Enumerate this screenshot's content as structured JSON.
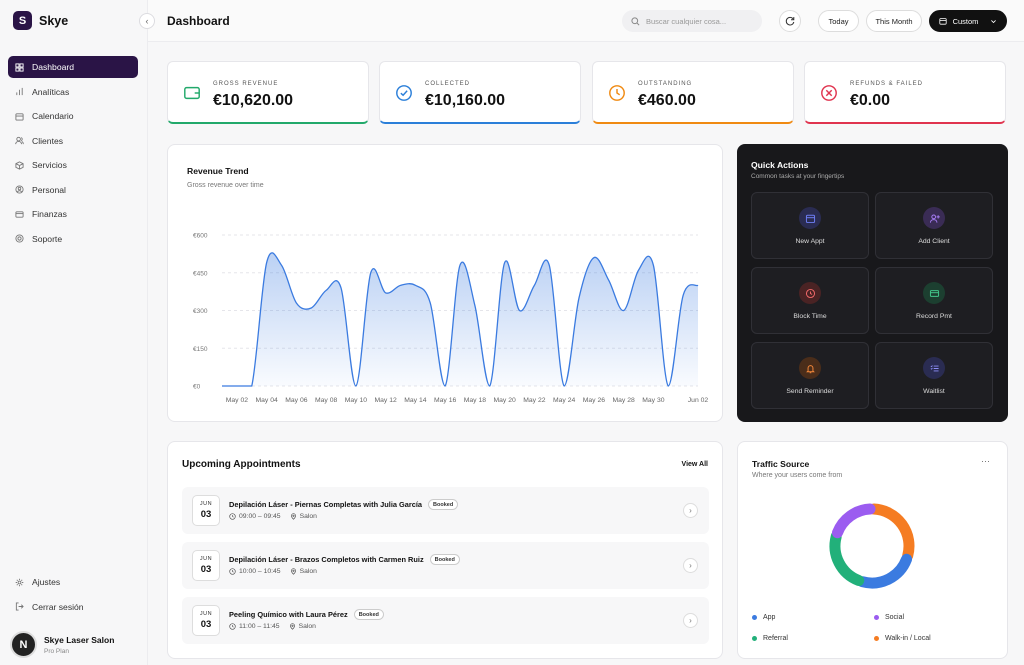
{
  "brand": {
    "initial": "S",
    "name": "Skye"
  },
  "nav": [
    {
      "label": "Dashboard",
      "icon": "grid-icon",
      "active": true
    },
    {
      "label": "Analíticas",
      "icon": "bar-chart-icon"
    },
    {
      "label": "Calendario",
      "icon": "calendar-icon"
    },
    {
      "label": "Clientes",
      "icon": "users-icon"
    },
    {
      "label": "Servicios",
      "icon": "box-icon"
    },
    {
      "label": "Personal",
      "icon": "user-circle-icon"
    },
    {
      "label": "Finanzas",
      "icon": "card-icon"
    },
    {
      "label": "Soporte",
      "icon": "lifebuoy-icon"
    }
  ],
  "bottom_nav": [
    {
      "label": "Ajustes",
      "icon": "gear-icon"
    },
    {
      "label": "Cerrar sesión",
      "icon": "logout-icon"
    }
  ],
  "user": {
    "initial": "N",
    "name": "Skye Laser Salon",
    "plan": "Pro Plan"
  },
  "header": {
    "title": "Dashboard",
    "search_placeholder": "Buscar cualquier cosa...",
    "today": "Today",
    "this_month": "This Month",
    "custom": "Custom"
  },
  "stats": [
    {
      "label": "GROSS REVENUE",
      "value": "€10,620.00",
      "color": "#22a96b",
      "icon": "wallet-icon"
    },
    {
      "label": "COLLECTED",
      "value": "€10,160.00",
      "color": "#2b7fd9",
      "icon": "check-circle-icon"
    },
    {
      "label": "OUTSTANDING",
      "value": "€460.00",
      "color": "#f08a12",
      "icon": "clock-icon"
    },
    {
      "label": "REFUNDS & FAILED",
      "value": "€0.00",
      "color": "#e0344f",
      "icon": "x-circle-icon"
    }
  ],
  "revenue": {
    "title": "Revenue Trend",
    "subtitle": "Gross revenue over time"
  },
  "chart_data": {
    "type": "area",
    "x": [
      "May 01",
      "May 02",
      "May 03",
      "May 04",
      "May 05",
      "May 06",
      "May 07",
      "May 08",
      "May 09",
      "May 10",
      "May 11",
      "May 12",
      "May 13",
      "May 14",
      "May 15",
      "May 16",
      "May 17",
      "May 18",
      "May 19",
      "May 20",
      "May 21",
      "May 22",
      "May 23",
      "May 24",
      "May 25",
      "May 26",
      "May 27",
      "May 28",
      "May 29",
      "May 30",
      "May 31",
      "Jun 01",
      "Jun 02"
    ],
    "values": [
      0,
      0,
      0,
      490,
      480,
      330,
      310,
      380,
      390,
      0,
      450,
      370,
      400,
      400,
      330,
      0,
      480,
      320,
      0,
      490,
      300,
      400,
      480,
      0,
      350,
      510,
      420,
      300,
      460,
      480,
      0,
      360,
      400
    ],
    "tick_labels": [
      "May 02",
      "May 04",
      "May 06",
      "May 08",
      "May 10",
      "May 12",
      "May 14",
      "May 16",
      "May 18",
      "May 20",
      "May 22",
      "May 24",
      "May 26",
      "May 28",
      "May 30",
      "Jun 02"
    ],
    "y_ticks": [
      "€0",
      "€150",
      "€300",
      "€450",
      "€600"
    ],
    "ylim": [
      0,
      600
    ],
    "color": "#3b7be0",
    "grid": true
  },
  "quick_actions": {
    "title": "Quick Actions",
    "subtitle": "Common tasks at your fingertips",
    "items": [
      {
        "label": "New Appt",
        "icon": "calendar-icon",
        "color": "#6d7df2",
        "bg": "#2a2c52"
      },
      {
        "label": "Add Client",
        "icon": "user-plus-icon",
        "color": "#a77cf5",
        "bg": "#3a2c55"
      },
      {
        "label": "Block Time",
        "icon": "clock-icon",
        "color": "#f36a6a",
        "bg": "#4a2324"
      },
      {
        "label": "Record Pmt",
        "icon": "card-icon",
        "color": "#43c68a",
        "bg": "#1c3f30"
      },
      {
        "label": "Send Reminder",
        "icon": "bell-icon",
        "color": "#f5883a",
        "bg": "#4a2d1a"
      },
      {
        "label": "Waitlist",
        "icon": "list-icon",
        "color": "#8d8ef8",
        "bg": "#2a2c52"
      }
    ]
  },
  "appointments": {
    "title": "Upcoming Appointments",
    "view_all": "View All",
    "items": [
      {
        "month": "JUN",
        "day": "03",
        "title": "Depilación Láser - Piernas Completas with Julia García",
        "status": "Booked",
        "time": "09:00 – 09:45",
        "room": "Salon"
      },
      {
        "month": "JUN",
        "day": "03",
        "title": "Depilación Láser - Brazos Completos with Carmen Ruiz",
        "status": "Booked",
        "time": "10:00 – 10:45",
        "room": "Salon"
      },
      {
        "month": "JUN",
        "day": "03",
        "title": "Peeling Químico with Laura Pérez",
        "status": "Booked",
        "time": "11:00 – 11:45",
        "room": "Salon"
      }
    ]
  },
  "traffic": {
    "title": "Traffic Source",
    "subtitle": "Where your users come from",
    "more": "···",
    "segments": [
      {
        "name": "App",
        "value": 25,
        "color": "#3b7be0"
      },
      {
        "name": "Social",
        "value": 20,
        "color": "#9b5cf0"
      },
      {
        "name": "Referral",
        "value": 25,
        "color": "#22b07a"
      },
      {
        "name": "Walk-in / Local",
        "value": 30,
        "color": "#f57c22"
      }
    ]
  }
}
